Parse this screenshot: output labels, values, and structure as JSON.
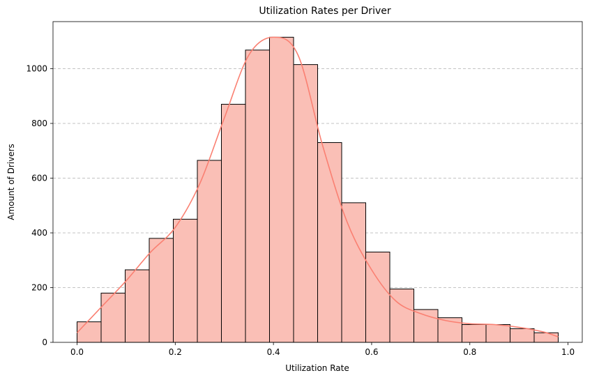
{
  "chart_data": {
    "type": "bar",
    "title": "Utilization Rates per Driver",
    "xlabel": "Utilization Rate",
    "ylabel": "Amount of Drivers",
    "bin_edges": [
      0.0,
      0.049,
      0.098,
      0.147,
      0.196,
      0.245,
      0.294,
      0.343,
      0.392,
      0.441,
      0.49,
      0.539,
      0.588,
      0.637,
      0.686,
      0.735,
      0.784,
      0.833,
      0.882,
      0.931,
      0.98
    ],
    "values": [
      75,
      180,
      265,
      380,
      450,
      665,
      870,
      1068,
      1115,
      1015,
      730,
      510,
      330,
      195,
      120,
      90,
      65,
      65,
      50,
      35
    ],
    "kde": {
      "x": [
        0.0,
        0.05,
        0.1,
        0.15,
        0.2,
        0.25,
        0.3,
        0.35,
        0.4,
        0.45,
        0.5,
        0.55,
        0.6,
        0.65,
        0.7,
        0.75,
        0.8,
        0.85,
        0.9,
        0.95,
        0.98
      ],
      "y": [
        35,
        130,
        225,
        330,
        420,
        580,
        820,
        1050,
        1115,
        1050,
        720,
        440,
        265,
        150,
        105,
        80,
        68,
        65,
        55,
        38,
        20
      ]
    },
    "xlim": [
      -0.049,
      1.029
    ],
    "ylim": [
      0,
      1172
    ],
    "xticks": [
      0.0,
      0.2,
      0.4,
      0.6,
      0.8,
      1.0
    ],
    "xtick_labels": [
      "0.0",
      "0.2",
      "0.4",
      "0.6",
      "0.8",
      "1.0"
    ],
    "yticks": [
      0,
      200,
      400,
      600,
      800,
      1000
    ],
    "ytick_labels": [
      "0",
      "200",
      "400",
      "600",
      "800",
      "1000"
    ],
    "grid": "y-dashed",
    "colors": {
      "bar_fill": "#fabfb6",
      "kde_line": "#fa8072"
    }
  }
}
